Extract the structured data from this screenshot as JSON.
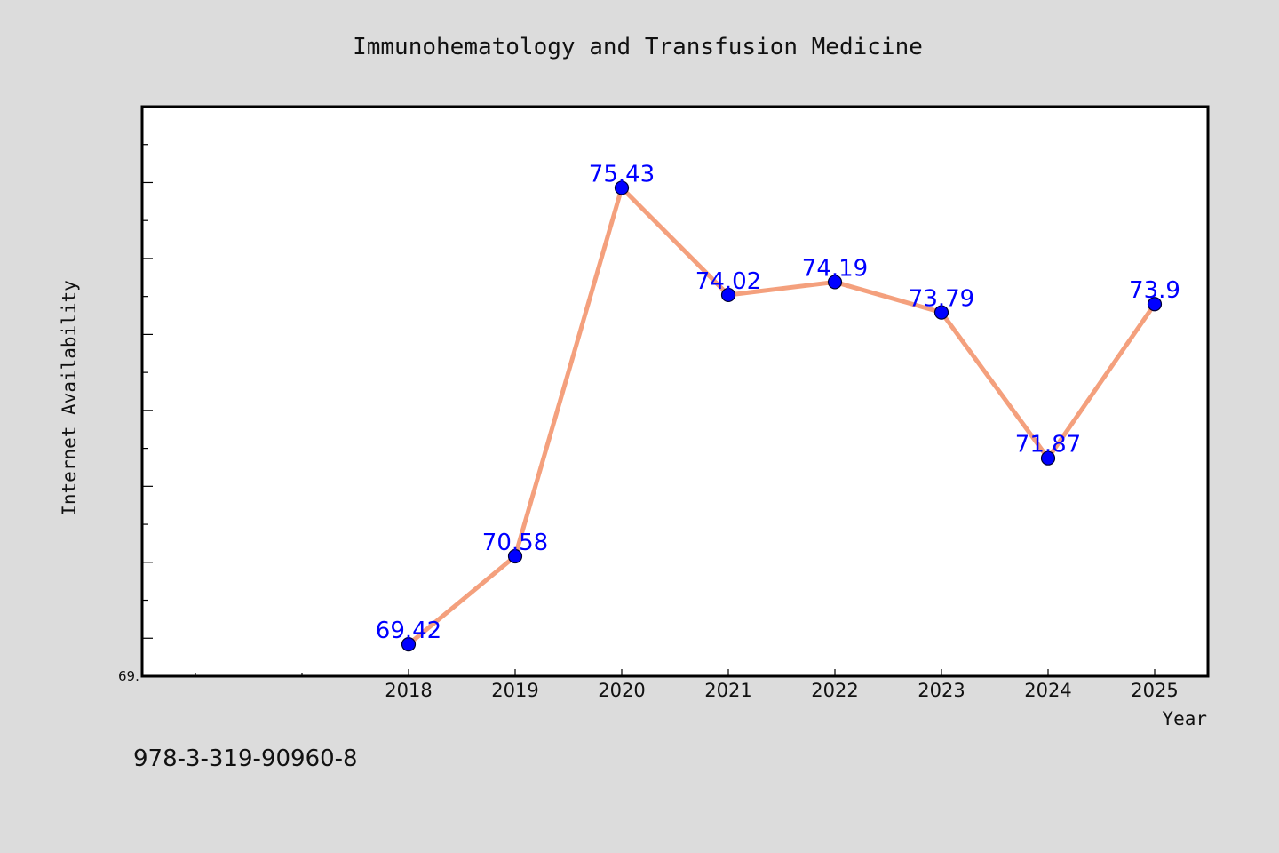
{
  "chart_data": {
    "type": "line",
    "title": "Immunohematology and Transfusion Medicine",
    "xlabel": "Year",
    "ylabel": "Internet Availability",
    "x": [
      "2018",
      "2019",
      "2020",
      "2021",
      "2022",
      "2023",
      "2024",
      "2025"
    ],
    "series": [
      {
        "values": [
          69.42,
          70.58,
          75.43,
          74.02,
          74.19,
          73.79,
          71.87,
          73.9
        ],
        "labels": [
          "69.42",
          "70.58",
          "75.43",
          "74.02",
          "74.19",
          "73.79",
          "71.87",
          "73.9"
        ]
      }
    ],
    "ylim": [
      69.0,
      76.5
    ],
    "y_tick_labels": [
      "69."
    ],
    "grid": false,
    "line_color": "#f4a07d",
    "marker_color": "#0000ff",
    "label_color": "#0000ff",
    "background_color": "#dcdcdc",
    "plot_background_color": "#ffffff"
  },
  "footer": {
    "isbn": "978-3-319-90960-8"
  }
}
